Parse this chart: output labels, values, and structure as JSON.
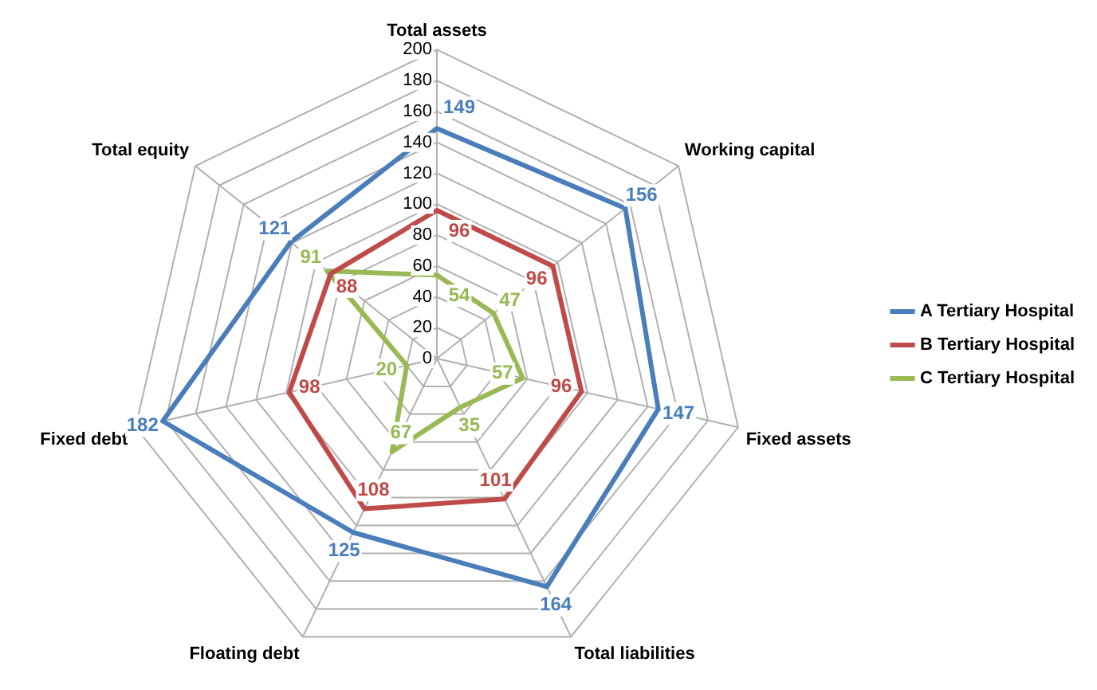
{
  "chart_data": {
    "type": "radar",
    "categories": [
      "Total assets",
      "Working capital",
      "Fixed assets",
      "Total liabilities",
      "Floating debt",
      "Fixed debt",
      "Total equity"
    ],
    "series": [
      {
        "name": "A Tertiary Hospital",
        "color": "#4a7ebb",
        "values": [
          149,
          156,
          147,
          164,
          125,
          182,
          121
        ]
      },
      {
        "name": "B Tertiary Hospital",
        "color": "#be4b48",
        "values": [
          96,
          96,
          96,
          101,
          108,
          98,
          88
        ]
      },
      {
        "name": "C Tertiary Hospital",
        "color": "#98b954",
        "values": [
          54,
          47,
          57,
          35,
          67,
          20,
          91
        ]
      }
    ],
    "ylim": [
      0,
      200
    ],
    "yticks": [
      0,
      20,
      40,
      60,
      80,
      100,
      120,
      140,
      160,
      180,
      200
    ],
    "grid": true,
    "legend": "right",
    "marker": "none",
    "data_labels": true
  }
}
